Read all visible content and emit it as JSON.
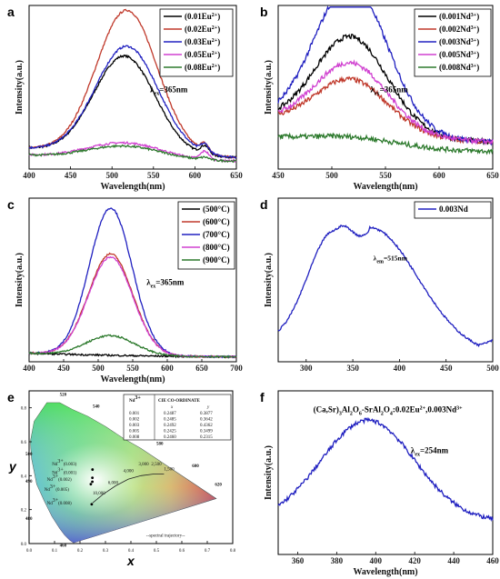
{
  "chart_data": [
    {
      "panel": "a",
      "type": "line",
      "xlabel": "Wavelength(nm)",
      "ylabel": "Intensity(a.u.)",
      "xlim": [
        400,
        650
      ],
      "xticks": [
        400,
        450,
        500,
        550,
        600,
        650
      ],
      "annotation": "λex=365nm",
      "legend": "top-right",
      "series": [
        {
          "name": "(0.01Eu2+)",
          "color": "#000000",
          "peak": 515,
          "amp": 0.6,
          "width": 37,
          "base": 0.12
        },
        {
          "name": "(0.02Eu2+)",
          "color": "#c0392b",
          "peak": 518,
          "amp": 0.88,
          "width": 37,
          "base": 0.12
        },
        {
          "name": "(0.03Eu2+)",
          "color": "#2020c0",
          "peak": 518,
          "amp": 0.66,
          "width": 38,
          "base": 0.12
        },
        {
          "name": "(0.05Eu2+)",
          "color": "#d040d0",
          "peak": 515,
          "amp": 0.1,
          "width": 45,
          "base": 0.08
        },
        {
          "name": "(0.08Eu2+)",
          "color": "#2d7a2d",
          "peak": 515,
          "amp": 0.08,
          "width": 45,
          "base": 0.08
        }
      ]
    },
    {
      "panel": "b",
      "type": "line",
      "xlabel": "Wavelength(nm)",
      "ylabel": "Intensity(a.u.)",
      "xlim": [
        450,
        650
      ],
      "xticks": [
        450,
        500,
        550,
        600,
        650
      ],
      "annotation": "λex=365nm",
      "legend": "top-right",
      "series": [
        {
          "name": "(0.001Nd3+)",
          "color": "#000000",
          "peak": 518,
          "amp": 0.58,
          "width": 34,
          "base": 0.28
        },
        {
          "name": "(0.002Nd3+)",
          "color": "#c0392b",
          "peak": 518,
          "amp": 0.32,
          "width": 34,
          "base": 0.28
        },
        {
          "name": "(0.003Nd3+)",
          "color": "#2020c0",
          "peak": 518,
          "amp": 0.9,
          "width": 34,
          "base": 0.28
        },
        {
          "name": "(0.005Nd3+)",
          "color": "#d040d0",
          "peak": 518,
          "amp": 0.42,
          "width": 34,
          "base": 0.28
        },
        {
          "name": "(0.008Nd3+)",
          "color": "#2d7a2d",
          "peak": 520,
          "amp": 0.05,
          "width": 40,
          "base": 0.18
        }
      ]
    },
    {
      "panel": "c",
      "type": "line",
      "xlabel": "Wavelength(nm)",
      "ylabel": "Intensity(a.u.)",
      "xlim": [
        400,
        700
      ],
      "xticks": [
        400,
        450,
        500,
        550,
        600,
        650,
        700
      ],
      "annotation": "λex=365nm",
      "legend": "top-right",
      "series": [
        {
          "name": "(500°C)",
          "color": "#000000",
          "peak": 520,
          "amp": 0.0,
          "width": 35,
          "base": 0.05
        },
        {
          "name": "(600°C)",
          "color": "#c0392b",
          "peak": 518,
          "amp": 0.62,
          "width": 32,
          "base": 0.05
        },
        {
          "name": "(700°C)",
          "color": "#2020c0",
          "peak": 518,
          "amp": 0.9,
          "width": 31,
          "base": 0.05
        },
        {
          "name": "(800°C)",
          "color": "#d040d0",
          "peak": 518,
          "amp": 0.6,
          "width": 32,
          "base": 0.05
        },
        {
          "name": "(900°C)",
          "color": "#2d7a2d",
          "peak": 518,
          "amp": 0.12,
          "width": 35,
          "base": 0.05
        }
      ]
    },
    {
      "panel": "d",
      "type": "line",
      "xlabel": "",
      "ylabel": "Intensity(a.u.)",
      "xlim": [
        270,
        500
      ],
      "xticks": [
        300,
        350,
        400,
        450,
        500
      ],
      "annotation": "λem=515nm",
      "legend": "top-right",
      "series": [
        {
          "name": "0.003Nd",
          "color": "#2020c0"
        }
      ]
    },
    {
      "panel": "e",
      "type": "scatter",
      "xlabel": "x",
      "ylabel": "y",
      "xlim": [
        0.0,
        0.8
      ],
      "ylim": [
        0.0,
        0.9
      ],
      "xticks": [
        "0.0",
        "0.1",
        "0.2",
        "0.3",
        "0.4",
        "0.5",
        "0.6",
        "0.7",
        "0.8"
      ],
      "yticks": [
        "0.0",
        "0.2",
        "0.4",
        "0.6",
        "0.8"
      ],
      "wavelength_labels": [
        "520",
        "540",
        "560",
        "500",
        "580",
        "600",
        "620",
        "490",
        "480",
        "460"
      ],
      "table": {
        "headers": [
          "Nd3+",
          "CIE CO-ORDINATE"
        ],
        "subheaders": [
          "",
          "x",
          "y"
        ],
        "rows": [
          [
            "0.001",
            "0.2487",
            "0.3877"
          ],
          [
            "0.002",
            "0.2485",
            "0.3642"
          ],
          [
            "0.003",
            "0.2492",
            "0.4362"
          ],
          [
            "0.005",
            "0.2425",
            "0.3499"
          ],
          [
            "0.008",
            "0.2460",
            "0.2315"
          ]
        ]
      },
      "point_labels": [
        "Nd3+(0.003)",
        "Nd3+(0.001)",
        "Nd3+(0.002)",
        "Nd3+(0.005)",
        "Nd3+(0.008)"
      ],
      "temperature_labels": [
        "3,000",
        "2,500",
        "4,000",
        "1,500",
        "6,000",
        "10,000"
      ],
      "trajectory_label": "--spectral trajectory--"
    },
    {
      "panel": "f",
      "type": "line",
      "title": "(Ca,Sr)3Al2O6-SrAl2O4:0.02Eu2+,0.003Nd3+",
      "xlabel": "Wavelength(nm)",
      "ylabel": "Intensity(a.u.)",
      "xlim": [
        350,
        460
      ],
      "xticks": [
        360,
        380,
        400,
        420,
        440,
        460
      ],
      "annotation": "λex=254nm",
      "series": [
        {
          "name": "",
          "color": "#2020c0",
          "peak": 396,
          "amp": 0.78,
          "width": 30,
          "base": 0.05
        }
      ]
    }
  ]
}
